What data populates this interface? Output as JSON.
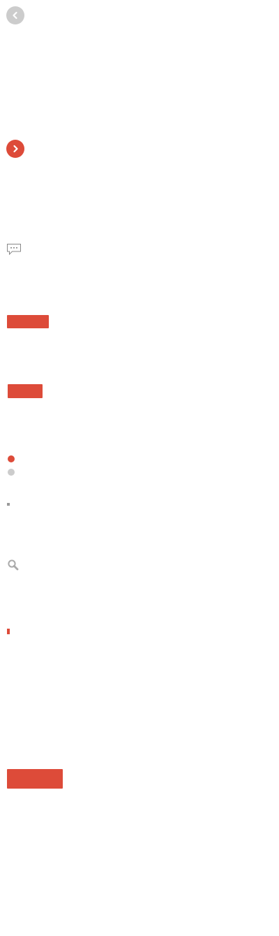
{
  "colors": {
    "accent": "#dd4b39",
    "neutral": "#cccccc",
    "icon_gray": "#aaaaaa",
    "white": "#ffffff"
  },
  "icons": {
    "prev": "chevron-left-icon",
    "next": "chevron-right-icon",
    "comment": "chat-bubble-icon",
    "search": "search-icon"
  },
  "pagination": {
    "active_index": 0,
    "count": 2
  }
}
